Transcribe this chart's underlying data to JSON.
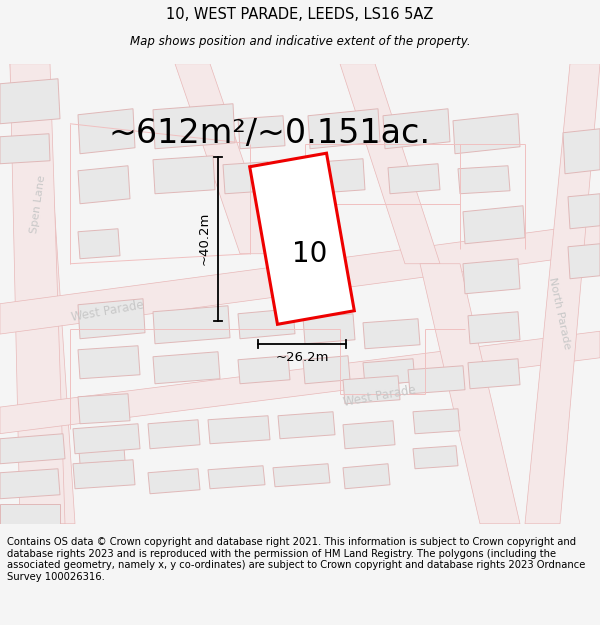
{
  "title_line1": "10, WEST PARADE, LEEDS, LS16 5AZ",
  "title_line2": "Map shows position and indicative extent of the property.",
  "area_label": "~612m²/~0.151ac.",
  "number_label": "10",
  "dim_height": "~40.2m",
  "dim_width": "~26.2m",
  "footer_text": "Contains OS data © Crown copyright and database right 2021. This information is subject to Crown copyright and database rights 2023 and is reproduced with the permission of HM Land Registry. The polygons (including the associated geometry, namely x, y co-ordinates) are subject to Crown copyright and database rights 2023 Ordnance Survey 100026316.",
  "bg_color": "#f5f5f5",
  "map_bg": "#ffffff",
  "road_fill": "#f5e8e8",
  "road_edge": "#e8b8b8",
  "building_fill": "#e8e8e8",
  "building_edge": "#e0b8b8",
  "parcel_edge": "#f0c0c0",
  "highlight_color": "#ee0000",
  "street_color": "#c8c8c8",
  "title_fontsize": 10.5,
  "subtitle_fontsize": 8.5,
  "footer_fontsize": 7.2,
  "area_fontsize": 24,
  "number_fontsize": 20,
  "dim_fontsize": 9.5
}
